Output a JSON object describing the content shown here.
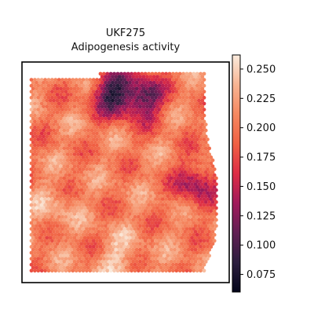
{
  "chart_data": {
    "type": "heatmap",
    "title_lines": [
      "UKF275",
      "Adipogenesis activity"
    ],
    "colormap": "rocket",
    "colormap_stops": [
      "#03051a",
      "#2c1e3e",
      "#611f53",
      "#a11a5b",
      "#dd2c45",
      "#f06043",
      "#f58860",
      "#f7b493",
      "#faebdd"
    ],
    "vmin": 0.06,
    "vmax": 0.262,
    "colorbar_ticks": [
      {
        "value": 0.25,
        "label": "0.250"
      },
      {
        "value": 0.225,
        "label": "0.225"
      },
      {
        "value": 0.2,
        "label": "0.200"
      },
      {
        "value": 0.175,
        "label": "0.175"
      },
      {
        "value": 0.15,
        "label": "0.150"
      },
      {
        "value": 0.125,
        "label": "0.125"
      },
      {
        "value": 0.1,
        "label": "0.100"
      },
      {
        "value": 0.075,
        "label": "0.075"
      }
    ],
    "regions": [
      {
        "name": "low-activity-top",
        "u": 0.45,
        "v": 0.1,
        "value": 0.09
      },
      {
        "name": "low-activity-top-right",
        "u": 0.62,
        "v": 0.12,
        "value": 0.11
      },
      {
        "name": "low-activity-right",
        "u": 0.9,
        "v": 0.55,
        "value": 0.13
      },
      {
        "name": "high-activity-bottom",
        "u": 0.48,
        "v": 0.92,
        "value": 0.24
      },
      {
        "name": "high-activity-left",
        "u": 0.12,
        "v": 0.68,
        "value": 0.23
      }
    ],
    "missing_spot_color": "#ffffff",
    "grid": false
  }
}
